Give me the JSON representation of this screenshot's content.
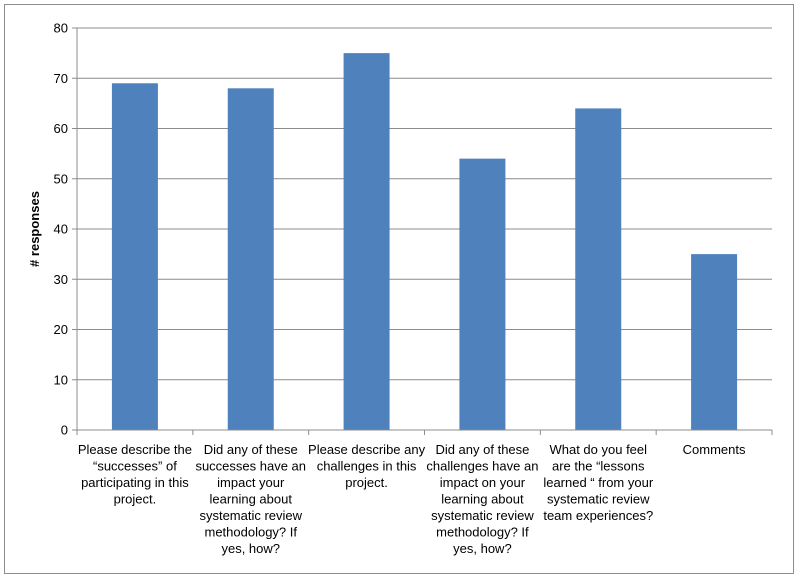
{
  "chart_data": {
    "type": "bar",
    "title": "",
    "xlabel": "",
    "ylabel": "# responses",
    "ylim": [
      0,
      80
    ],
    "yticks": [
      0,
      10,
      20,
      30,
      40,
      50,
      60,
      70,
      80
    ],
    "grid": true,
    "legend": "none",
    "bar_color": "#4f81bd",
    "categories": [
      [
        "Please describe the",
        "“successes” of",
        "participating in this",
        "project."
      ],
      [
        "Did any of these",
        "successes have an",
        "impact your",
        "learning about",
        "systematic review",
        "methodology? If",
        "yes, how?"
      ],
      [
        "Please describe any",
        "challenges in this",
        "project."
      ],
      [
        "Did any of these",
        "challenges have an",
        "impact on your",
        "learning about",
        "systematic review",
        "methodology? If",
        "yes, how?"
      ],
      [
        "What do you feel",
        "are the “lessons",
        "learned “ from your",
        "systematic review",
        "team experiences?"
      ],
      [
        "Comments"
      ]
    ],
    "values": [
      69,
      68,
      75,
      54,
      64,
      35
    ]
  }
}
